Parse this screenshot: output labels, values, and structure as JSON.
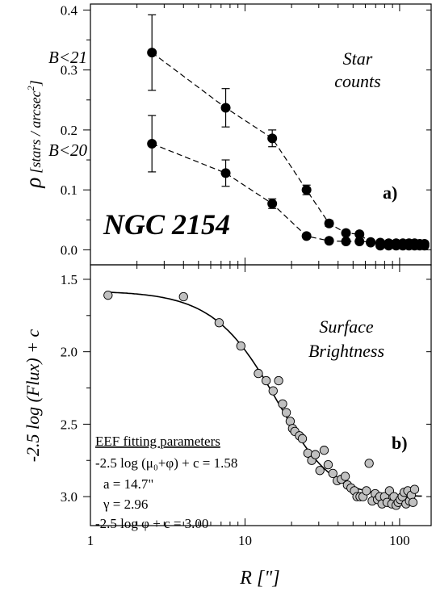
{
  "chart_data": [
    {
      "type": "scatter",
      "panel_label": "a)",
      "ylabel": "ρ [stars / arcsec²]",
      "ylabel_main": "ρ",
      "ylabel_unit": "[stars / arcsec",
      "ylabel_sup": "2",
      "ylabel_close": "]",
      "annotation_line1": "Star",
      "annotation_line2": "counts",
      "object_label": "NGC 2154",
      "xscale": "log",
      "xlim": [
        1,
        160
      ],
      "ylim": [
        -0.025,
        0.41
      ],
      "yticks": [
        "0.0",
        "0.1",
        "0.2",
        "0.3",
        "0.4"
      ],
      "ytick_values": [
        0.0,
        0.1,
        0.2,
        0.3,
        0.4
      ],
      "series": [
        {
          "name": "B<21",
          "x": [
            2.5,
            7.5,
            15,
            25,
            35,
            45,
            55,
            65,
            75,
            85,
            95,
            105,
            115,
            125,
            135,
            145
          ],
          "y": [
            0.329,
            0.237,
            0.186,
            0.1,
            0.044,
            0.028,
            0.026,
            0.012,
            0.012,
            0.011,
            0.011,
            0.011,
            0.011,
            0.011,
            0.01,
            0.01
          ],
          "err": [
            0.063,
            0.032,
            0.014,
            0.008,
            0.005,
            0.004,
            0.004,
            0.003,
            0.003,
            0.003,
            0.003,
            0.003,
            0.003,
            0.003,
            0.003,
            0.003
          ]
        },
        {
          "name": "B<20",
          "x": [
            2.5,
            7.5,
            15,
            25,
            35,
            45,
            55,
            65,
            75,
            85,
            95,
            105,
            115,
            125,
            135,
            145
          ],
          "y": [
            0.177,
            0.128,
            0.077,
            0.023,
            0.015,
            0.014,
            0.014,
            0.013,
            0.007,
            0.007,
            0.007,
            0.007,
            0.007,
            0.007,
            0.007,
            0.007
          ],
          "err": [
            0.047,
            0.022,
            0.008,
            0.003,
            0.003,
            0.003,
            0.003,
            0.003,
            0.002,
            0.002,
            0.002,
            0.002,
            0.002,
            0.002,
            0.002,
            0.002
          ]
        }
      ]
    },
    {
      "type": "scatter",
      "panel_label": "b)",
      "ylabel": "-2.5 log (Flux) + c",
      "xlabel": "R [\"]",
      "annotation_line1": "Surface",
      "annotation_line2": "Brightness",
      "xscale": "log",
      "xlim": [
        1,
        160
      ],
      "ylim": [
        3.2,
        1.4
      ],
      "y_inverted": true,
      "xticks": [
        "1",
        "10",
        "100"
      ],
      "xtick_values": [
        1,
        10,
        100
      ],
      "yticks": [
        "1.5",
        "2.0",
        "2.5",
        "3.0"
      ],
      "ytick_values": [
        1.5,
        2.0,
        2.5,
        3.0
      ],
      "params_title": "EEF fitting parameters",
      "params": [
        "-2.5 log (μ₀+φ) + c = 1.58",
        "a = 14.7\"",
        "γ = 2.96",
        "-2.5 log φ + c = 3.00"
      ],
      "fit": {
        "model": "EFF",
        "mu0_term": 1.58,
        "a": 14.7,
        "gamma": 2.96,
        "bg_term": 3.0
      },
      "points": {
        "x": [
          1.3,
          4.0,
          6.8,
          9.4,
          12.2,
          13.7,
          15.2,
          16.5,
          17.5,
          18.5,
          19.6,
          20.3,
          21.0,
          22.5,
          23.5,
          25.5,
          27.0,
          28.5,
          30.5,
          32.5,
          34.5,
          37.0,
          39.5,
          42.0,
          44.5,
          46.0,
          48.5,
          51.0,
          53.0,
          55.5,
          58.0,
          61.0,
          63.5,
          66.5,
          69.5,
          72.0,
          74.5,
          77.0,
          80.0,
          83.0,
          86.0,
          89.0,
          92.0,
          95.0,
          98.0,
          101.0,
          104.0,
          107.0,
          110.0,
          113.0,
          116.0,
          119.0,
          122.0,
          125.0
        ],
        "y": [
          1.61,
          1.62,
          1.8,
          1.96,
          2.15,
          2.2,
          2.27,
          2.2,
          2.36,
          2.42,
          2.48,
          2.53,
          2.55,
          2.58,
          2.6,
          2.7,
          2.75,
          2.71,
          2.82,
          2.68,
          2.78,
          2.84,
          2.89,
          2.88,
          2.86,
          2.92,
          2.94,
          2.96,
          3.0,
          3.0,
          3.0,
          2.96,
          2.77,
          3.03,
          2.98,
          3.02,
          3.0,
          3.05,
          3.0,
          3.04,
          2.96,
          3.05,
          3.0,
          3.06,
          3.04,
          3.02,
          3.0,
          2.97,
          3.05,
          2.96,
          3.03,
          2.99,
          3.04,
          2.95
        ]
      }
    }
  ]
}
